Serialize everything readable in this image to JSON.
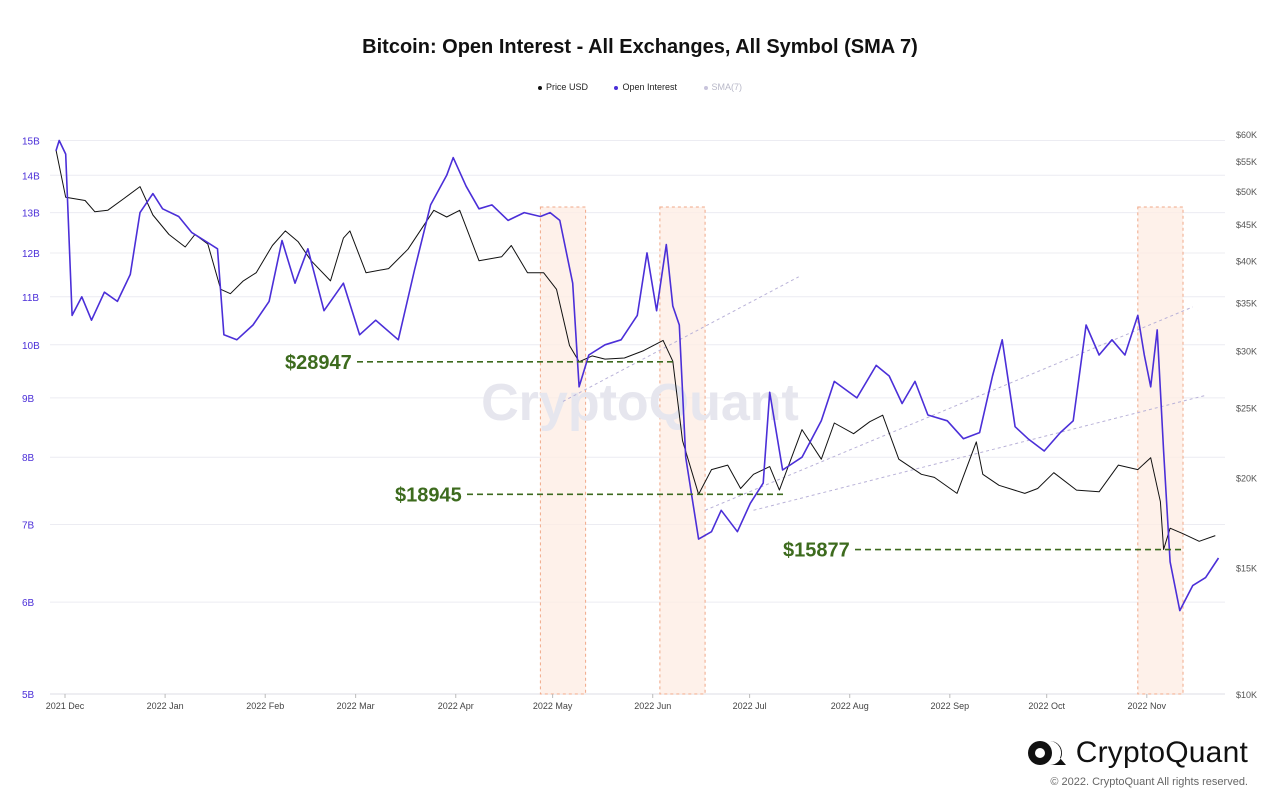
{
  "chart_data": {
    "type": "line",
    "title": "Bitcoin: Open Interest - All Exchanges, All Symbol (SMA 7)",
    "legend": [
      {
        "name": "Price USD",
        "color": "#111111"
      },
      {
        "name": "Open Interest",
        "color": "#4b2fd8"
      },
      {
        "name": "SMA(7)",
        "color": "#c8c4dc"
      }
    ],
    "legend_position": "top-center",
    "watermark": "CryptoQuant",
    "x_labels": [
      "2021 Dec",
      "2022 Jan",
      "2022 Feb",
      "2022 Mar",
      "2022 Apr",
      "2022 May",
      "2022 Jun",
      "2022 Jul",
      "2022 Aug",
      "2022 Sep",
      "2022 Oct",
      "2022 Nov"
    ],
    "left_axis": {
      "series": "Open Interest",
      "scale": "log",
      "range": [
        5000000000,
        15500000000
      ],
      "ticks": [
        {
          "value": 5000000000,
          "label": "5B"
        },
        {
          "value": 6000000000,
          "label": "6B"
        },
        {
          "value": 7000000000,
          "label": "7B"
        },
        {
          "value": 8000000000,
          "label": "8B"
        },
        {
          "value": 9000000000,
          "label": "9B"
        },
        {
          "value": 10000000000,
          "label": "10B"
        },
        {
          "value": 11000000000,
          "label": "11B"
        },
        {
          "value": 12000000000,
          "label": "12B"
        },
        {
          "value": 13000000000,
          "label": "13B"
        },
        {
          "value": 14000000000,
          "label": "14B"
        },
        {
          "value": 15000000000,
          "label": "15B"
        }
      ]
    },
    "right_axis": {
      "series": "Price USD",
      "scale": "log",
      "range": [
        10000,
        60000
      ],
      "ticks": [
        {
          "value": 10000,
          "label": "$10K"
        },
        {
          "value": 15000,
          "label": "$15K"
        },
        {
          "value": 20000,
          "label": "$20K"
        },
        {
          "value": 25000,
          "label": "$25K"
        },
        {
          "value": 30000,
          "label": "$30K"
        },
        {
          "value": 35000,
          "label": "$35K"
        },
        {
          "value": 40000,
          "label": "$40K"
        },
        {
          "value": 45000,
          "label": "$45K"
        },
        {
          "value": 50000,
          "label": "$50K"
        },
        {
          "value": 55000,
          "label": "$55K"
        },
        {
          "value": 60000,
          "label": "$60K"
        }
      ]
    },
    "grid": true,
    "series": [
      {
        "name": "Price USD",
        "axis": "right",
        "color": "#111111",
        "points": [
          [
            "2021-12-01",
            57000
          ],
          [
            "2021-12-04",
            49000
          ],
          [
            "2021-12-10",
            48500
          ],
          [
            "2021-12-13",
            46800
          ],
          [
            "2021-12-17",
            47000
          ],
          [
            "2021-12-22",
            48800
          ],
          [
            "2021-12-27",
            50700
          ],
          [
            "2021-12-31",
            46300
          ],
          [
            "2022-01-05",
            43500
          ],
          [
            "2022-01-10",
            41800
          ],
          [
            "2022-01-13",
            43500
          ],
          [
            "2022-01-17",
            42200
          ],
          [
            "2022-01-21",
            36500
          ],
          [
            "2022-01-24",
            36000
          ],
          [
            "2022-01-28",
            37500
          ],
          [
            "2022-02-01",
            38500
          ],
          [
            "2022-02-06",
            42000
          ],
          [
            "2022-02-10",
            44000
          ],
          [
            "2022-02-14",
            42500
          ],
          [
            "2022-02-18",
            40000
          ],
          [
            "2022-02-24",
            37500
          ],
          [
            "2022-02-28",
            43000
          ],
          [
            "2022-03-02",
            44000
          ],
          [
            "2022-03-07",
            38500
          ],
          [
            "2022-03-14",
            39000
          ],
          [
            "2022-03-20",
            41500
          ],
          [
            "2022-03-28",
            47000
          ],
          [
            "2022-04-01",
            46000
          ],
          [
            "2022-04-05",
            47000
          ],
          [
            "2022-04-11",
            40000
          ],
          [
            "2022-04-18",
            40500
          ],
          [
            "2022-04-21",
            42000
          ],
          [
            "2022-04-26",
            38500
          ],
          [
            "2022-05-01",
            38500
          ],
          [
            "2022-05-05",
            36500
          ],
          [
            "2022-05-09",
            30500
          ],
          [
            "2022-05-12",
            28947
          ],
          [
            "2022-05-16",
            29500
          ],
          [
            "2022-05-20",
            29200
          ],
          [
            "2022-05-26",
            29300
          ],
          [
            "2022-06-01",
            30000
          ],
          [
            "2022-06-07",
            31000
          ],
          [
            "2022-06-10",
            29000
          ],
          [
            "2022-06-13",
            22500
          ],
          [
            "2022-06-18",
            18945
          ],
          [
            "2022-06-22",
            20500
          ],
          [
            "2022-06-27",
            20800
          ],
          [
            "2022-07-01",
            19300
          ],
          [
            "2022-07-05",
            20200
          ],
          [
            "2022-07-10",
            20700
          ],
          [
            "2022-07-13",
            19200
          ],
          [
            "2022-07-20",
            23300
          ],
          [
            "2022-07-26",
            21200
          ],
          [
            "2022-07-30",
            23800
          ],
          [
            "2022-08-05",
            23000
          ],
          [
            "2022-08-10",
            23900
          ],
          [
            "2022-08-14",
            24400
          ],
          [
            "2022-08-19",
            21200
          ],
          [
            "2022-08-26",
            20200
          ],
          [
            "2022-08-30",
            20000
          ],
          [
            "2022-09-06",
            19000
          ],
          [
            "2022-09-12",
            22400
          ],
          [
            "2022-09-14",
            20200
          ],
          [
            "2022-09-19",
            19500
          ],
          [
            "2022-09-27",
            19000
          ],
          [
            "2022-10-01",
            19300
          ],
          [
            "2022-10-06",
            20300
          ],
          [
            "2022-10-13",
            19200
          ],
          [
            "2022-10-20",
            19100
          ],
          [
            "2022-10-26",
            20800
          ],
          [
            "2022-11-01",
            20500
          ],
          [
            "2022-11-05",
            21300
          ],
          [
            "2022-11-08",
            18500
          ],
          [
            "2022-11-09",
            15877
          ],
          [
            "2022-11-11",
            17000
          ],
          [
            "2022-11-15",
            16700
          ],
          [
            "2022-11-20",
            16300
          ],
          [
            "2022-11-25",
            16600
          ]
        ]
      },
      {
        "name": "Open Interest",
        "axis": "left",
        "color": "#4b2fd8",
        "points": [
          [
            "2021-12-01",
            14700000000
          ],
          [
            "2021-12-02",
            15000000000
          ],
          [
            "2021-12-04",
            14600000000
          ],
          [
            "2021-12-06",
            10600000000
          ],
          [
            "2021-12-09",
            11000000000
          ],
          [
            "2021-12-12",
            10500000000
          ],
          [
            "2021-12-16",
            11100000000
          ],
          [
            "2021-12-20",
            10900000000
          ],
          [
            "2021-12-24",
            11500000000
          ],
          [
            "2021-12-27",
            13000000000
          ],
          [
            "2021-12-31",
            13500000000
          ],
          [
            "2022-01-03",
            13100000000
          ],
          [
            "2022-01-08",
            12900000000
          ],
          [
            "2022-01-12",
            12500000000
          ],
          [
            "2022-01-16",
            12300000000
          ],
          [
            "2022-01-20",
            12100000000
          ],
          [
            "2022-01-22",
            10200000000
          ],
          [
            "2022-01-26",
            10100000000
          ],
          [
            "2022-01-31",
            10400000000
          ],
          [
            "2022-02-05",
            10900000000
          ],
          [
            "2022-02-09",
            12300000000
          ],
          [
            "2022-02-13",
            11300000000
          ],
          [
            "2022-02-17",
            12100000000
          ],
          [
            "2022-02-22",
            10700000000
          ],
          [
            "2022-02-28",
            11300000000
          ],
          [
            "2022-03-05",
            10200000000
          ],
          [
            "2022-03-10",
            10500000000
          ],
          [
            "2022-03-17",
            10100000000
          ],
          [
            "2022-03-22",
            11600000000
          ],
          [
            "2022-03-27",
            13200000000
          ],
          [
            "2022-04-01",
            14000000000
          ],
          [
            "2022-04-03",
            14500000000
          ],
          [
            "2022-04-07",
            13700000000
          ],
          [
            "2022-04-11",
            13100000000
          ],
          [
            "2022-04-15",
            13200000000
          ],
          [
            "2022-04-20",
            12800000000
          ],
          [
            "2022-04-25",
            13000000000
          ],
          [
            "2022-04-30",
            12900000000
          ],
          [
            "2022-05-03",
            13000000000
          ],
          [
            "2022-05-06",
            12800000000
          ],
          [
            "2022-05-10",
            11300000000
          ],
          [
            "2022-05-12",
            9200000000
          ],
          [
            "2022-05-15",
            9800000000
          ],
          [
            "2022-05-20",
            10000000000
          ],
          [
            "2022-05-25",
            10100000000
          ],
          [
            "2022-05-30",
            10600000000
          ],
          [
            "2022-06-02",
            12000000000
          ],
          [
            "2022-06-05",
            10700000000
          ],
          [
            "2022-06-08",
            12200000000
          ],
          [
            "2022-06-10",
            10800000000
          ],
          [
            "2022-06-12",
            10400000000
          ],
          [
            "2022-06-14",
            8000000000
          ],
          [
            "2022-06-18",
            6800000000
          ],
          [
            "2022-06-22",
            6900000000
          ],
          [
            "2022-06-25",
            7200000000
          ],
          [
            "2022-06-30",
            6900000000
          ],
          [
            "2022-07-04",
            7300000000
          ],
          [
            "2022-07-08",
            7600000000
          ],
          [
            "2022-07-10",
            9100000000
          ],
          [
            "2022-07-14",
            7800000000
          ],
          [
            "2022-07-20",
            8000000000
          ],
          [
            "2022-07-26",
            8600000000
          ],
          [
            "2022-07-30",
            9300000000
          ],
          [
            "2022-08-06",
            9000000000
          ],
          [
            "2022-08-12",
            9600000000
          ],
          [
            "2022-08-16",
            9400000000
          ],
          [
            "2022-08-20",
            8900000000
          ],
          [
            "2022-08-24",
            9300000000
          ],
          [
            "2022-08-28",
            8700000000
          ],
          [
            "2022-09-03",
            8600000000
          ],
          [
            "2022-09-08",
            8300000000
          ],
          [
            "2022-09-13",
            8400000000
          ],
          [
            "2022-09-17",
            9400000000
          ],
          [
            "2022-09-20",
            10100000000
          ],
          [
            "2022-09-24",
            8500000000
          ],
          [
            "2022-09-28",
            8300000000
          ],
          [
            "2022-10-03",
            8100000000
          ],
          [
            "2022-10-08",
            8400000000
          ],
          [
            "2022-10-12",
            8600000000
          ],
          [
            "2022-10-16",
            10400000000
          ],
          [
            "2022-10-20",
            9800000000
          ],
          [
            "2022-10-24",
            10100000000
          ],
          [
            "2022-10-28",
            9800000000
          ],
          [
            "2022-11-01",
            10600000000
          ],
          [
            "2022-11-03",
            9800000000
          ],
          [
            "2022-11-05",
            9200000000
          ],
          [
            "2022-11-07",
            10300000000
          ],
          [
            "2022-11-09",
            8100000000
          ],
          [
            "2022-11-11",
            6500000000
          ],
          [
            "2022-11-14",
            5900000000
          ],
          [
            "2022-11-18",
            6200000000
          ],
          [
            "2022-11-22",
            6300000000
          ],
          [
            "2022-11-26",
            6550000000
          ]
        ]
      }
    ],
    "annotations": [
      {
        "label": "$28947",
        "value": 28947,
        "from": "2021-12-01",
        "to": "2022-06-10"
      },
      {
        "label": "$18945",
        "value": 18945,
        "from": "2021-12-01",
        "to": "2022-07-15"
      },
      {
        "label": "$15877",
        "value": 15877,
        "from": "2021-12-01",
        "to": "2022-11-15"
      }
    ],
    "highlight_ranges": [
      {
        "from": "2022-04-30",
        "to": "2022-05-14"
      },
      {
        "from": "2022-06-06",
        "to": "2022-06-20"
      },
      {
        "from": "2022-11-01",
        "to": "2022-11-15"
      }
    ],
    "trend_channels": [
      {
        "from": [
          "2022-05-07",
          25500
        ],
        "to": [
          "2022-07-19",
          38000
        ]
      },
      {
        "from": [
          "2022-06-20",
          18000
        ],
        "to": [
          "2022-11-18",
          34500
        ]
      },
      {
        "from": [
          "2022-07-05",
          18000
        ],
        "to": [
          "2022-11-22",
          26000
        ]
      }
    ]
  },
  "brand": {
    "name": "CryptoQuant",
    "copyright": "© 2022. CryptoQuant All rights reserved."
  }
}
